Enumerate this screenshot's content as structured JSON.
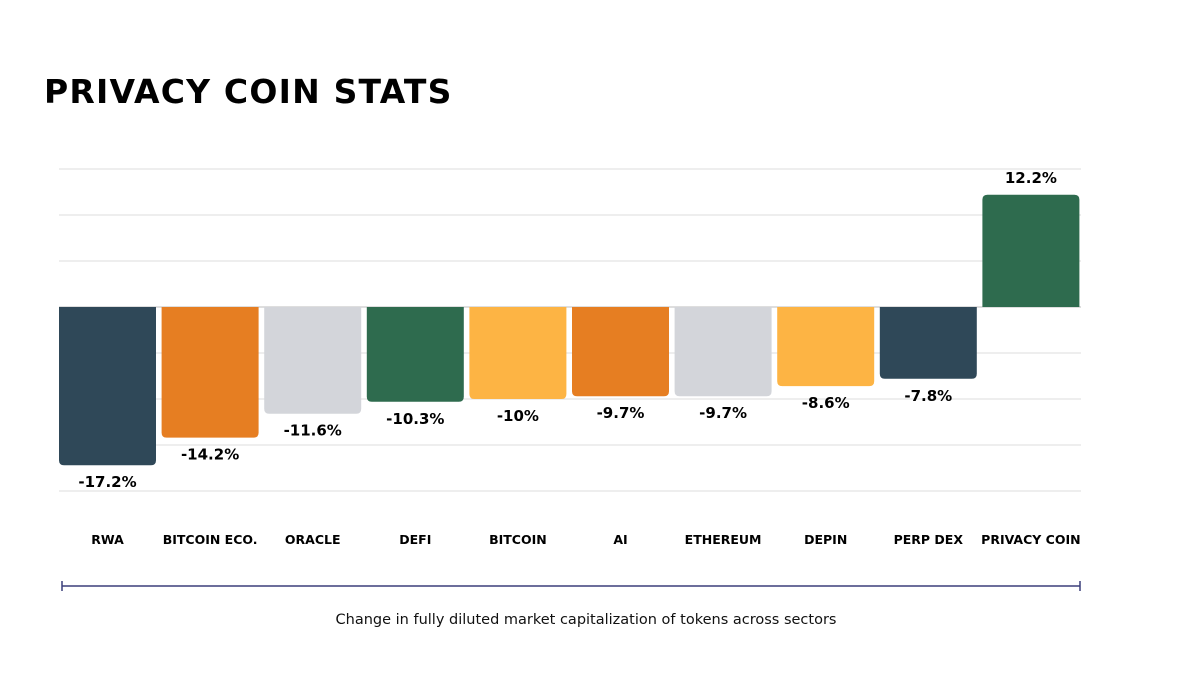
{
  "chart_data": {
    "type": "bar",
    "title": "PRIVACY COIN STATS",
    "caption": "Change in fully diluted market capitalization of tokens across sectors",
    "xlabel": "",
    "ylabel": "",
    "ylim": [
      -20,
      15
    ],
    "grid": true,
    "categories": [
      "RWA",
      "BITCOIN ECO.",
      "ORACLE",
      "DEFI",
      "BITCOIN",
      "AI",
      "ETHEREUM",
      "DEPIN",
      "PERP DEX",
      "PRIVACY COIN"
    ],
    "values": [
      -17.2,
      -14.2,
      -11.6,
      -10.3,
      -10,
      -9.7,
      -9.7,
      -8.6,
      -7.8,
      12.2
    ],
    "data_labels": [
      "-17.2%",
      "-14.2%",
      "-11.6%",
      "-10.3%",
      "-10%",
      "-9.7%",
      "-9.7%",
      "-8.6%",
      "-7.8%",
      "12.2%"
    ],
    "colors": [
      "#2f4858",
      "#e67e22",
      "#d3d5da",
      "#2e6b4e",
      "#fdb444",
      "#e67e22",
      "#d3d5da",
      "#fdb444",
      "#2f4858",
      "#2e6b4e"
    ]
  },
  "colors": {
    "grid": "#dcdcdc",
    "axis_line": "#3b3f7a",
    "text": "#000000"
  }
}
